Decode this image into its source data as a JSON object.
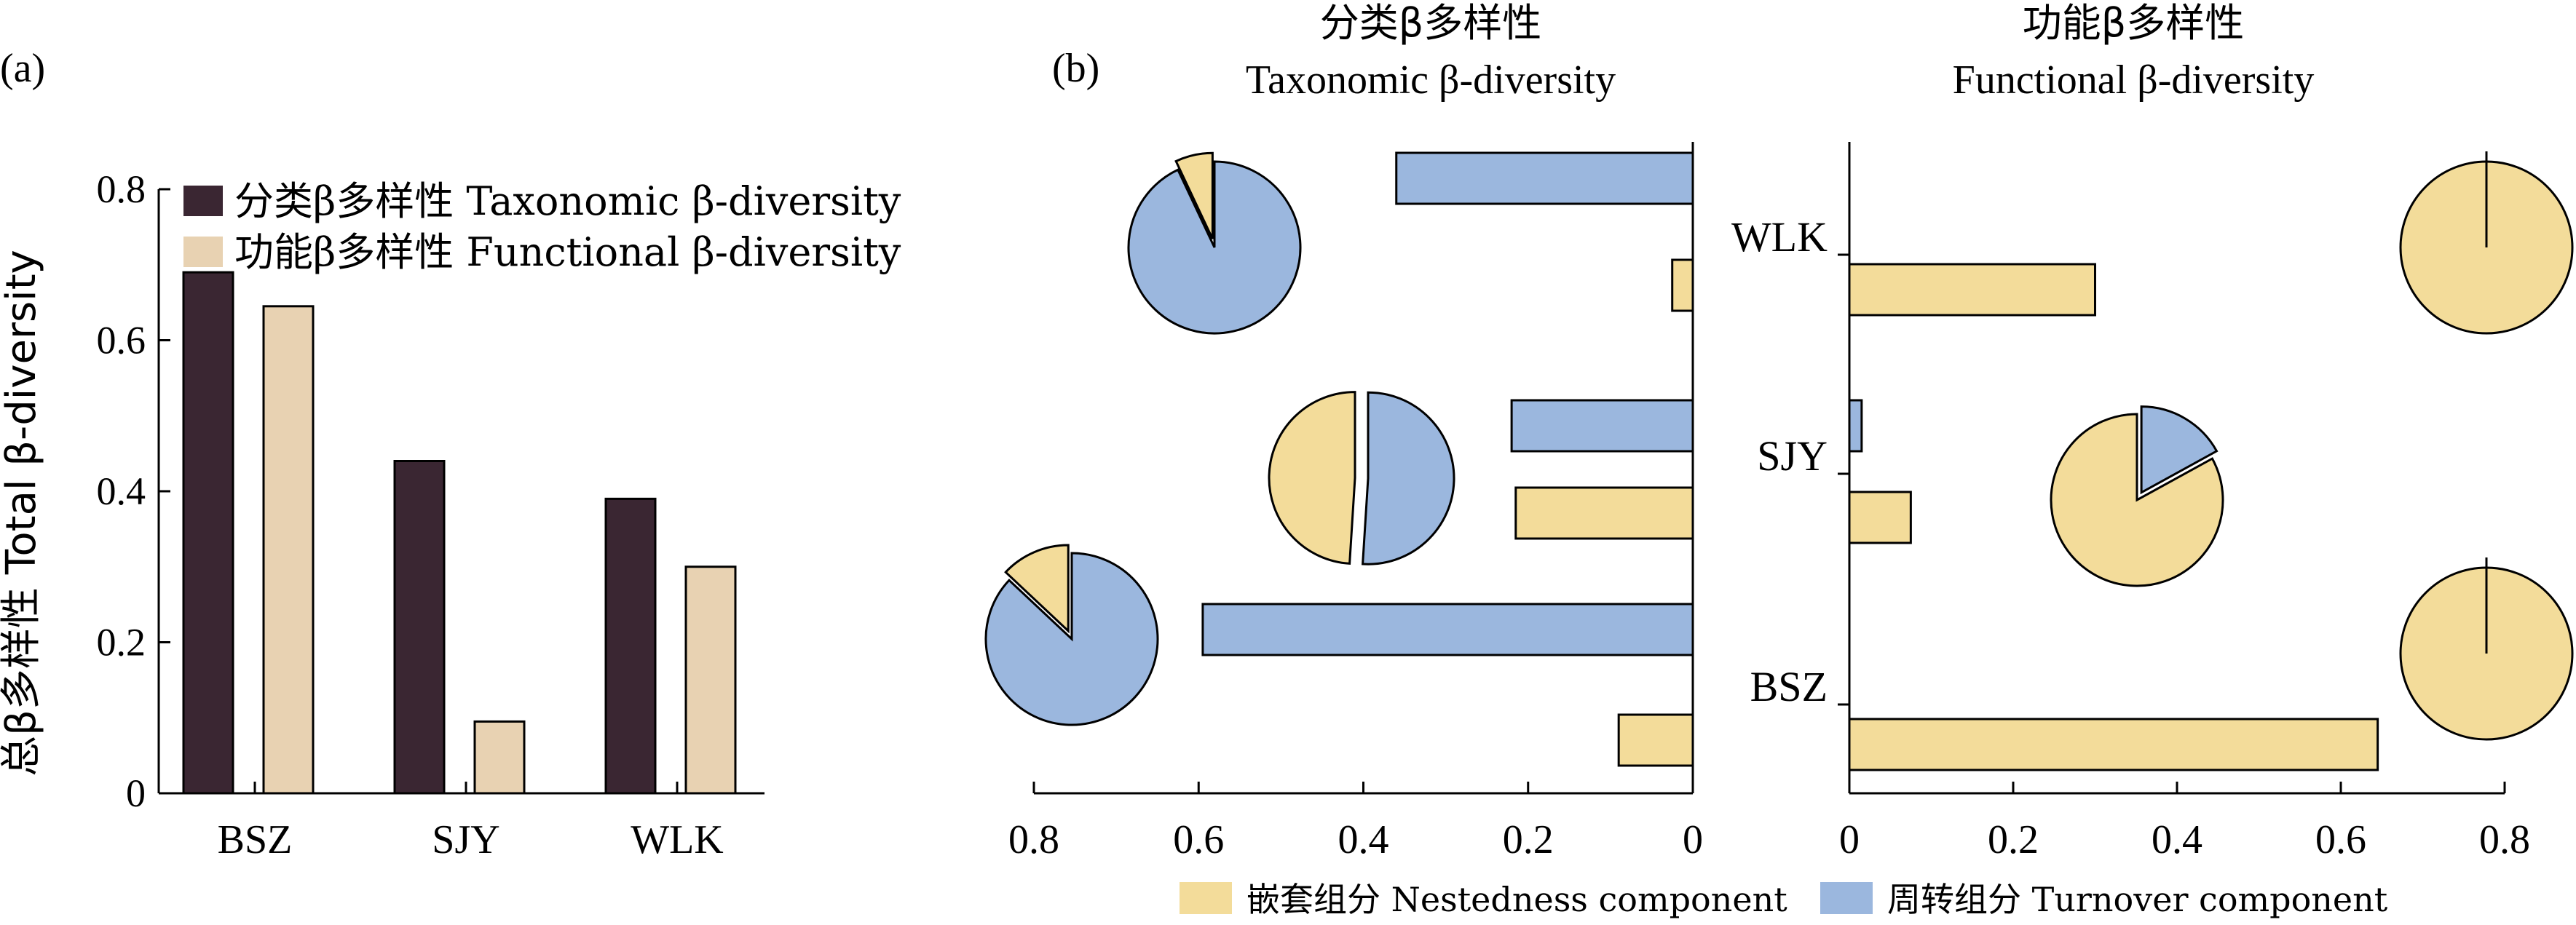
{
  "panel_labels": {
    "a": "(a)",
    "b": "(b)"
  },
  "colors": {
    "taxonomic": "#3a2632",
    "functional": "#e8d2b2",
    "nestedness": "#f3dc9a",
    "turnover": "#9bb7de",
    "stroke": "#000000"
  },
  "chart_data": [
    {
      "type": "bar",
      "panel": "(a)",
      "categories": [
        "BSZ",
        "SJY",
        "WLK"
      ],
      "series": [
        {
          "name": "分类β多样性 Taxonomic β-diversity",
          "values": [
            0.69,
            0.44,
            0.39
          ]
        },
        {
          "name": "功能β多样性 Functional β-diversity",
          "values": [
            0.645,
            0.095,
            0.3
          ]
        }
      ],
      "ylabel": "总β多样性 Total β-diversity",
      "ylim": [
        0,
        0.8
      ],
      "yticks": [
        "0",
        "0.2",
        "0.4",
        "0.6",
        "0.8"
      ],
      "legend": "top"
    },
    {
      "type": "bar",
      "panel": "(b)",
      "orientation": "horizontal",
      "title": [
        "分类β多样性",
        "Taxonomic β-diversity"
      ],
      "sites": [
        "WLK",
        "SJY",
        "BSZ"
      ],
      "series": [
        {
          "name": "周转组分 Turnover component",
          "values": [
            0.36,
            0.22,
            0.595
          ]
        },
        {
          "name": "嵌套组分 Nestedness component",
          "values": [
            0.025,
            0.215,
            0.09
          ]
        }
      ],
      "xlim": [
        0.8,
        0
      ],
      "xticks": [
        "0.8",
        "0.6",
        "0.4",
        "0.2",
        "0"
      ],
      "pies": [
        {
          "site": "WLK",
          "nestedness_share": 0.07,
          "turnover_share": 0.93
        },
        {
          "site": "SJY",
          "nestedness_share": 0.49,
          "turnover_share": 0.51
        },
        {
          "site": "BSZ",
          "nestedness_share": 0.13,
          "turnover_share": 0.87
        }
      ]
    },
    {
      "type": "bar",
      "panel": "(b)",
      "orientation": "horizontal",
      "title": [
        "功能β多样性",
        "Functional β-diversity"
      ],
      "sites": [
        "WLK",
        "SJY",
        "BSZ"
      ],
      "series": [
        {
          "name": "周转组分 Turnover component",
          "values": [
            0,
            0.015,
            0
          ]
        },
        {
          "name": "嵌套组分 Nestedness component",
          "values": [
            0.3,
            0.075,
            0.645
          ]
        }
      ],
      "xlim": [
        0,
        0.8
      ],
      "xticks": [
        "0",
        "0.2",
        "0.4",
        "0.6",
        "0.8"
      ],
      "pies": [
        {
          "site": "WLK",
          "nestedness_share": 1.0,
          "turnover_share": 0.0
        },
        {
          "site": "SJY",
          "nestedness_share": 0.83,
          "turnover_share": 0.17
        },
        {
          "site": "BSZ",
          "nestedness_share": 1.0,
          "turnover_share": 0.0
        }
      ]
    }
  ],
  "legend_b": [
    {
      "label": "嵌套组分 Nestedness component",
      "color_key": "nestedness"
    },
    {
      "label": "周转组分 Turnover component",
      "color_key": "turnover"
    }
  ]
}
